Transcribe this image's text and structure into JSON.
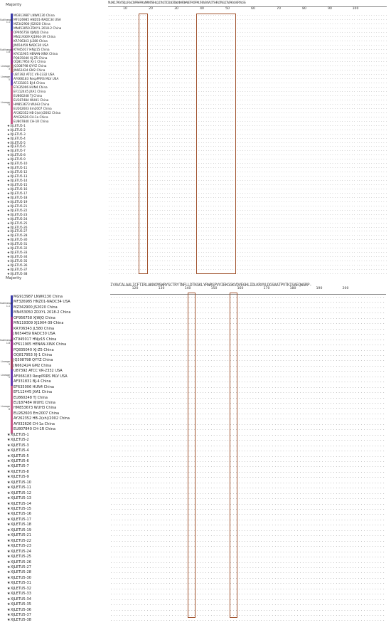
{
  "colors": {
    "sublineage": "#3a3aa8",
    "lineage1": "#9a2c8a",
    "lineage3": "#a04060",
    "lineage5": "#6a38b0",
    "lineage8": "#c85a8a",
    "box": "#a0522d"
  },
  "group_labels": {
    "sub11": "Sublineage 1.1",
    "sub18": "Sublineage 1.8",
    "l3": "Lineage 3",
    "l5": "Lineage 5",
    "l8": "Lineage 8"
  },
  "top": {
    "majority_label": "Majority",
    "consensus": "MLGKCLTAGYCSQLLFLWCIVPFWFAALVNANNTSSHLQLIYNLTICELNGTDWLNNKFDWAVETFVIFPALTHIVSYGALTTSHFLDTVGLITVSAGYLHGRYVLSS",
    "ticks": [
      "10",
      "20",
      "30",
      "40",
      "50",
      "60",
      "70",
      "80",
      "90",
      "100"
    ]
  },
  "bottom": {
    "majority_label": "Majority",
    "consensus": "IYAVCALAALICFTIRLAKNCMSWRYSCTRYTNFLLDTKGKLYRWRSPVVIEKGGKVDVEGHLIDLKRVVLDGSAATPVTKISAEQWGRP-",
    "ticks": [
      "120",
      "130",
      "140",
      "150",
      "160",
      "170",
      "180",
      "190",
      "200"
    ]
  },
  "sequences": [
    "MG913987 LNWK130 China",
    "MF326985 HNZ01-NADC34 USA",
    "MZ342900 JS2020 China",
    "MN453050 ZDXYL 2018-2 China",
    "OP956758 XJWJQ China",
    "MN119309 XJ1904-39 China",
    "KR706343 JL580 China",
    "JN654459 NADC30 USA",
    "KT945017 HNjz15 China",
    "KF611905 HENAN-XINX China",
    "PQ835040 XJ-Z5 China",
    "OQ817953 XJ-1 China",
    "JQ308798 QYYZ China",
    "JN662424 GM2 China",
    "U87392 ATCC VR-2332 USA",
    "AF066183 RespPRRS MLV USA",
    "AF331831 BJ-4 China",
    "EF635006 HUN4 China",
    "EF112445 JXA1 China",
    "EU860248 TJ China",
    "EU187484 WUH1 China",
    "HM853673 WUH3 China",
    "EU262603 Em2007 China",
    "AY262352 HB-2(sh)/2002 China",
    "AY032626 CH-1a China",
    "EU807840 CH-1R China",
    "XJLETU5-1",
    "XJLETU5-2",
    "XJLETU5-3",
    "XJLETU5-4",
    "XJLETU5-5",
    "XJLETU5-6",
    "XJLETU5-7",
    "XJLETU5-8",
    "XJLETU5-9",
    "XJLETU5-10",
    "XJLETU5-11",
    "XJLETU5-12",
    "XJLETU5-13",
    "XJLETU5-14",
    "XJLETU5-15",
    "XJLETU5-16",
    "XJLETU5-17",
    "XJLETU5-18",
    "XJLETU5-19",
    "XJLETU5-21",
    "XJLETU5-22",
    "XJLETU5-23",
    "XJLETU5-24",
    "XJLETU5-25",
    "XJLETU5-26",
    "XJLETU5-27",
    "XJLETU5-28",
    "XJLETU5-30",
    "XJLETU5-31",
    "XJLETU5-32",
    "XJLETU5-33",
    "XJLETU5-34",
    "XJLETU5-35",
    "XJLETU5-36",
    "XJLETU5-37",
    "XJLETU5-38"
  ]
}
